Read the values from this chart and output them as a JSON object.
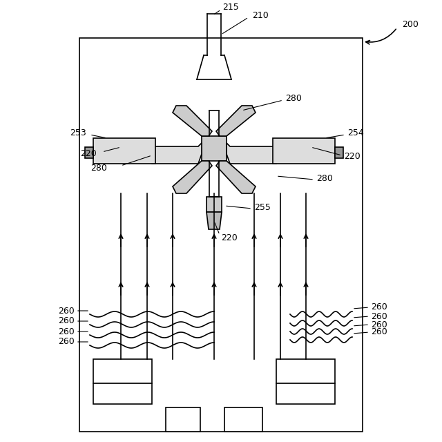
{
  "fig_width": 6.4,
  "fig_height": 6.4,
  "dpi": 100,
  "bg_color": "#ffffff",
  "line_color": "#000000",
  "label_200": "200",
  "label_210": "210",
  "label_215": "215",
  "label_220": "220",
  "label_253": "253",
  "label_254": "254",
  "label_255": "255",
  "label_260": "260",
  "label_280": "280"
}
